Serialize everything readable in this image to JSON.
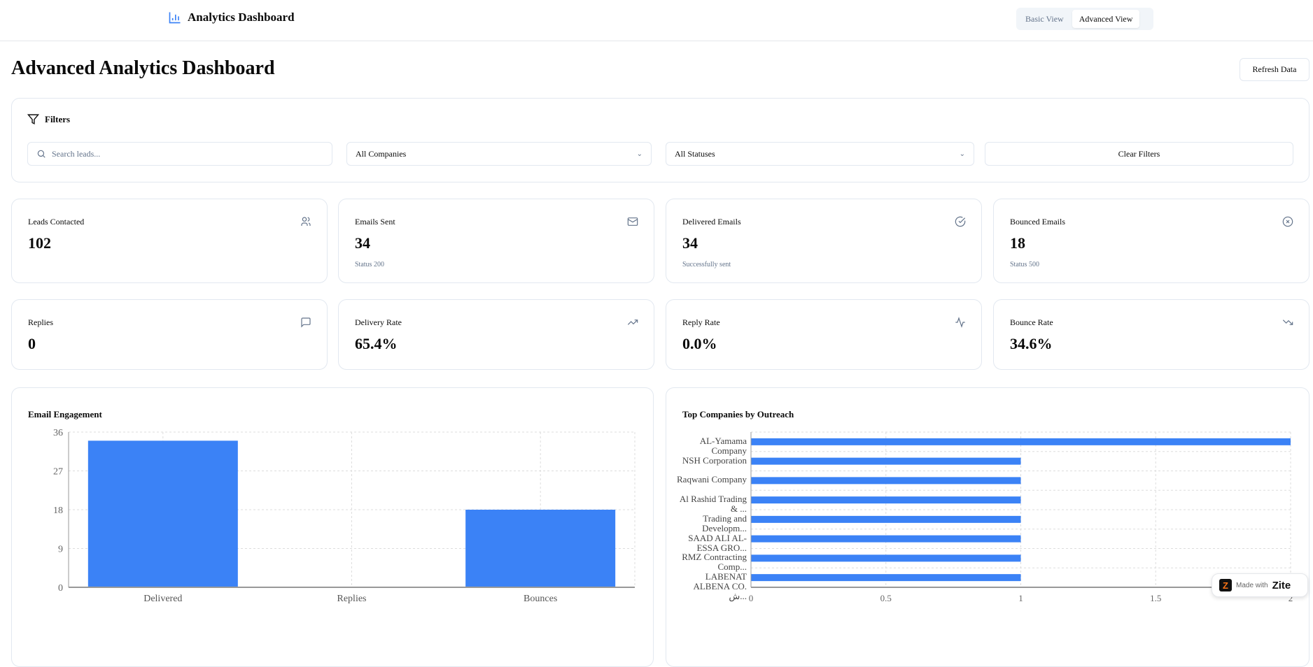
{
  "header": {
    "app_title": "Analytics Dashboard",
    "views": [
      "Basic View",
      "Advanced View"
    ],
    "active_view": "Advanced View"
  },
  "page": {
    "title": "Advanced Analytics Dashboard",
    "refresh_label": "Refresh Data"
  },
  "filters": {
    "title": "Filters",
    "search_placeholder": "Search leads...",
    "company_value": "All Companies",
    "status_value": "All Statuses",
    "clear_label": "Clear Filters"
  },
  "stats": [
    {
      "label": "Leads Contacted",
      "value": "102",
      "sub": "",
      "icon": "users-icon"
    },
    {
      "label": "Emails Sent",
      "value": "34",
      "sub": "Status 200",
      "icon": "mail-icon"
    },
    {
      "label": "Delivered Emails",
      "value": "34",
      "sub": "Successfully sent",
      "icon": "check-circle-icon"
    },
    {
      "label": "Bounced Emails",
      "value": "18",
      "sub": "Status 500",
      "icon": "x-circle-icon"
    },
    {
      "label": "Replies",
      "value": "0",
      "sub": "",
      "icon": "message-icon"
    },
    {
      "label": "Delivery Rate",
      "value": "65.4%",
      "sub": "",
      "icon": "trending-up-icon"
    },
    {
      "label": "Reply Rate",
      "value": "0.0%",
      "sub": "",
      "icon": "activity-icon"
    },
    {
      "label": "Bounce Rate",
      "value": "34.6%",
      "sub": "",
      "icon": "trending-down-icon"
    }
  ],
  "colors": {
    "accent": "#3b82f6"
  },
  "badge": {
    "prefix": "Made with",
    "brand": "Zite"
  },
  "chart_data": [
    {
      "type": "bar",
      "title": "Email Engagement",
      "categories": [
        "Delivered",
        "Replies",
        "Bounces"
      ],
      "values": [
        34,
        0,
        18
      ],
      "ylim": [
        0,
        36
      ],
      "yticks": [
        0,
        9,
        18,
        27,
        36
      ],
      "grid": true
    },
    {
      "type": "bar",
      "orientation": "horizontal",
      "title": "Top Companies by Outreach",
      "categories": [
        "AL-Yamama Company",
        "NSH Corporation",
        "Raqwani Company",
        "Al Rashid Trading & ...",
        "Trading and Developm...",
        "SAAD ALI AL-ESSA GRO...",
        "RMZ Contracting Comp...",
        "LABENAT ALBENA CO. ش..."
      ],
      "values": [
        2,
        1,
        1,
        1,
        1,
        1,
        1,
        1
      ],
      "xlim": [
        0,
        2
      ],
      "xticks": [
        0,
        0.5,
        1,
        1.5,
        2
      ],
      "grid": true
    }
  ]
}
